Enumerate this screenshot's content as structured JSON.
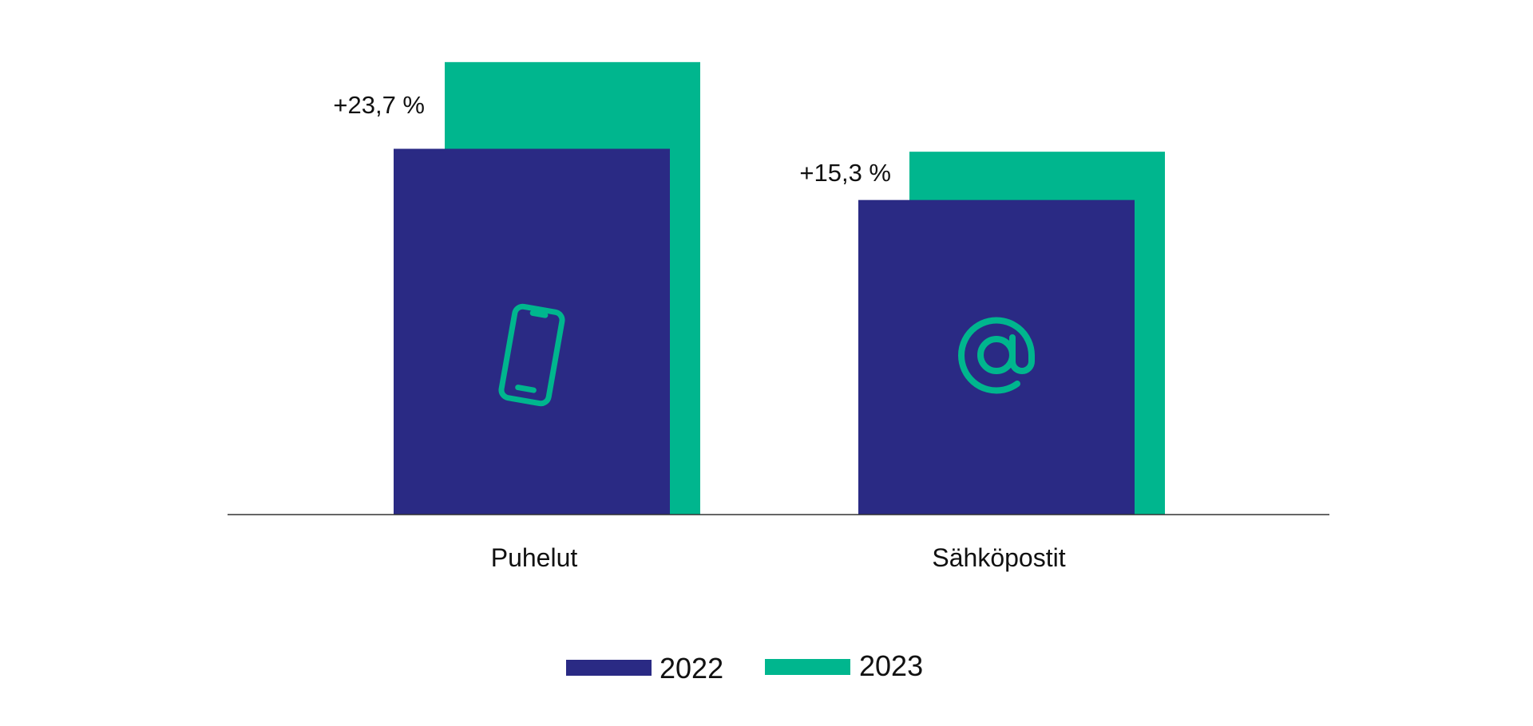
{
  "chart_data": {
    "type": "bar",
    "categories": [
      "Puhelut",
      "Sähköpostit"
    ],
    "category_icons": [
      "smartphone-icon",
      "at-sign-icon"
    ],
    "series": [
      {
        "name": "2022",
        "values": [
          100,
          86
        ],
        "color": "#2A2A84"
      },
      {
        "name": "2023",
        "values": [
          123.7,
          99.2
        ],
        "color": "#00B68E"
      }
    ],
    "annotations": [
      "+23,7 %",
      "+15,3 %"
    ],
    "ylim": [
      0,
      130
    ],
    "grid": false,
    "legend": "bottom-center",
    "icon_color": "#00B68E"
  }
}
